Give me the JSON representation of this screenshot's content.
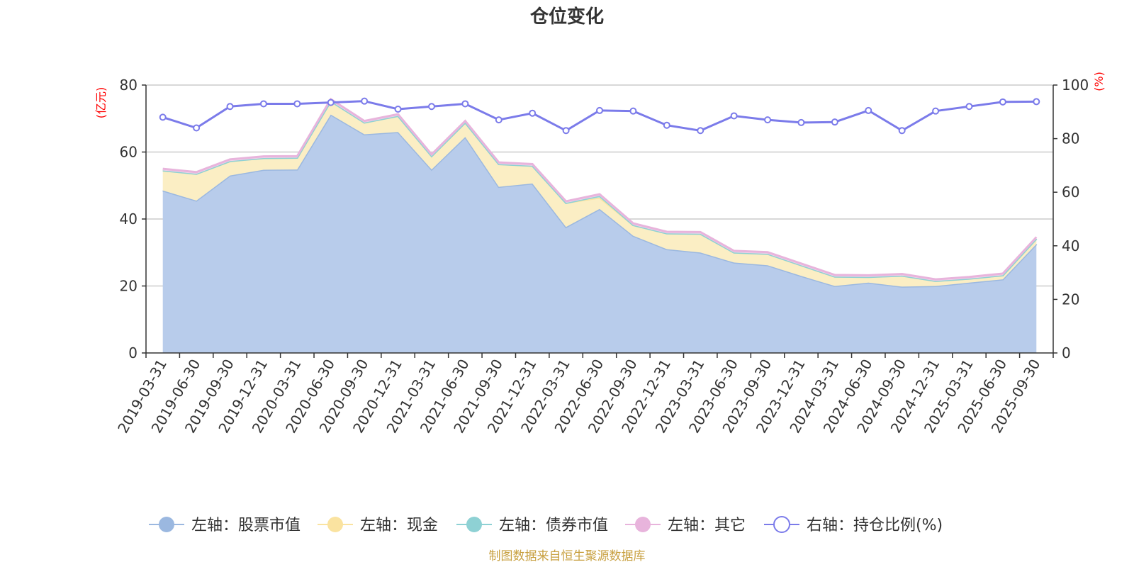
{
  "chart_data": {
    "type": "area",
    "title": "仓位变化",
    "source_note": "制图数据来自恒生聚源数据库",
    "left_axis": {
      "unit": "(亿元)",
      "min": 0,
      "max": 80,
      "ticks": [
        "0",
        "20",
        "40",
        "60",
        "80"
      ],
      "tick_values": [
        0,
        20,
        40,
        60,
        80
      ]
    },
    "right_axis": {
      "unit": "(%)",
      "min": 0,
      "max": 100,
      "ticks": [
        "0",
        "20",
        "40",
        "60",
        "80",
        "100"
      ],
      "tick_values": [
        0,
        20,
        40,
        60,
        80,
        100
      ]
    },
    "categories": [
      "2019-03-31",
      "2019-06-30",
      "2019-09-30",
      "2019-12-31",
      "2020-03-31",
      "2020-06-30",
      "2020-09-30",
      "2020-12-31",
      "2021-03-31",
      "2021-06-30",
      "2021-09-30",
      "2021-12-31",
      "2022-03-31",
      "2022-06-30",
      "2022-09-30",
      "2022-12-31",
      "2023-03-31",
      "2023-06-30",
      "2023-09-30",
      "2023-12-31",
      "2024-03-31",
      "2024-06-30",
      "2024-09-30",
      "2024-12-31",
      "2025-03-31",
      "2025-06-30",
      "2025-09-30"
    ],
    "series": [
      {
        "name": "左轴：股票市值",
        "axis": "left",
        "color": "#9bb8e0",
        "fill": "#b8cceb",
        "values": [
          48.5,
          45.5,
          53,
          54.7,
          54.8,
          71.2,
          65.3,
          66,
          54.8,
          64.5,
          49.6,
          50.6,
          37.6,
          43,
          35,
          31,
          30,
          27,
          26.2,
          23,
          20,
          21,
          19.8,
          20,
          21,
          22,
          32.5
        ]
      },
      {
        "name": "左轴：现金",
        "axis": "left",
        "color": "#fae3a0",
        "fill": "#fbeec4",
        "values": [
          6,
          8,
          4.3,
          3.5,
          3.5,
          4,
          3.5,
          4.8,
          4,
          4.3,
          6.8,
          5.3,
          7.2,
          3.4,
          3.2,
          4.7,
          5.6,
          3,
          3.4,
          3.2,
          2.8,
          1.7,
          3.3,
          1.5,
          1.2,
          1.2,
          1.6
        ]
      },
      {
        "name": "左轴：债券市值",
        "axis": "left",
        "color": "#8ed1d4",
        "fill": "#bfe6e6",
        "values": [
          0,
          0,
          0,
          0,
          0,
          0,
          0,
          0,
          0,
          0,
          0,
          0,
          0,
          0.5,
          0,
          0,
          0,
          0,
          0,
          0,
          0,
          0,
          0,
          0,
          0,
          0,
          0
        ]
      },
      {
        "name": "左轴：其它",
        "axis": "left",
        "color": "#e8b4dc",
        "fill": "#f2d3ea",
        "values": [
          0.5,
          0.5,
          0.5,
          0.5,
          0.5,
          0.6,
          0.5,
          0.5,
          0.5,
          0.5,
          0.5,
          0.5,
          0.5,
          0.5,
          0.5,
          0.5,
          0.5,
          0.5,
          0.5,
          0.5,
          0.5,
          0.5,
          0.5,
          0.5,
          0.5,
          0.5,
          0.5
        ]
      },
      {
        "name": "右轴：持仓比例(%)",
        "axis": "right",
        "color": "#7b7bea",
        "fill": "none",
        "values": [
          88,
          84,
          92,
          93,
          93,
          93.5,
          94,
          91,
          92,
          93,
          87,
          89.5,
          83,
          90.5,
          90.3,
          85,
          83,
          88.5,
          87,
          86,
          86.2,
          90.5,
          83,
          90.3,
          92,
          93.7,
          93.8
        ]
      }
    ]
  }
}
